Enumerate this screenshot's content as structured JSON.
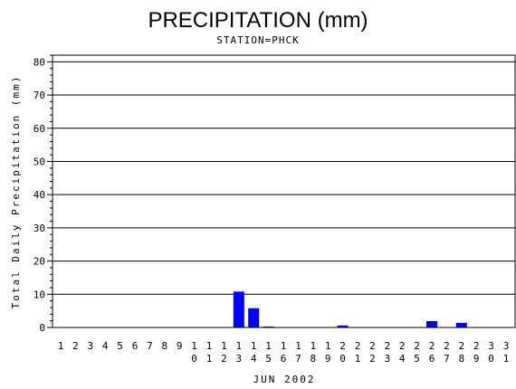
{
  "chart_data": {
    "type": "bar",
    "title": "PRECIPITATION (mm)",
    "subtitle": "STATION=PHCK",
    "xlabel": "JUN 2002",
    "ylabel": "Total Daily Precipitation (mm)",
    "ylim": [
      0,
      82
    ],
    "yticks": [
      0,
      10,
      20,
      30,
      40,
      50,
      60,
      70,
      80
    ],
    "grid": true,
    "bar_color": "#0000ff",
    "categories": [
      "1",
      "2",
      "3",
      "4",
      "5",
      "6",
      "7",
      "8",
      "9",
      "10",
      "11",
      "12",
      "13",
      "14",
      "15",
      "16",
      "17",
      "18",
      "19",
      "20",
      "21",
      "22",
      "23",
      "24",
      "25",
      "26",
      "27",
      "28",
      "29",
      "30",
      "31"
    ],
    "values": [
      0,
      0,
      0,
      0,
      0,
      0,
      0,
      0,
      0,
      0,
      0,
      0,
      10.8,
      5.8,
      0.3,
      0,
      0,
      0,
      0,
      0.6,
      0,
      0,
      0,
      0,
      0,
      1.9,
      0,
      1.4,
      0,
      0,
      0
    ]
  }
}
